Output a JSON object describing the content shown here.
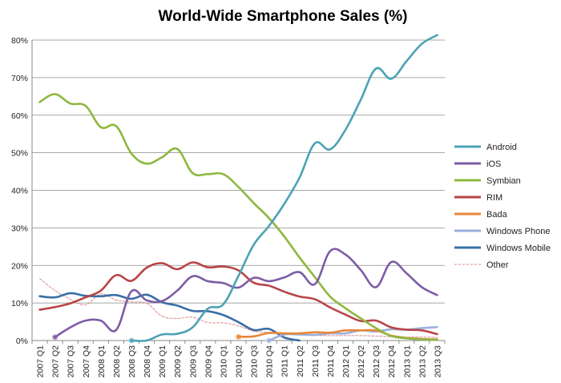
{
  "chart_data": {
    "type": "line",
    "title": "World-Wide Smartphone Sales (%)",
    "xlabel": "",
    "ylabel": "",
    "ylim": [
      0,
      80
    ],
    "yticks": [
      "0%",
      "10%",
      "20%",
      "30%",
      "40%",
      "50%",
      "60%",
      "70%",
      "80%"
    ],
    "grid": "horizontal",
    "legend_position": "right",
    "categories": [
      "2007 Q1",
      "2007 Q2",
      "2007 Q3",
      "2007 Q4",
      "2008 Q1",
      "2008 Q2",
      "2008 Q3",
      "2008 Q4",
      "2009 Q1",
      "2009 Q2",
      "2009 Q3",
      "2009 Q4",
      "2010 Q1",
      "2010 Q2",
      "2010 Q3",
      "2010 Q4",
      "2011 Q1",
      "2011 Q2",
      "2011 Q3",
      "2011 Q4",
      "2012 Q1",
      "2012 Q2",
      "2012 Q3",
      "2012 Q4",
      "2013 Q1",
      "2013 Q2",
      "2013 Q3"
    ],
    "series": [
      {
        "name": "Android",
        "color": "#4aa3b5",
        "style": "solid",
        "values": [
          null,
          null,
          null,
          null,
          null,
          null,
          0,
          0,
          1.6,
          1.8,
          3.5,
          8.5,
          9.6,
          17.2,
          25.5,
          30.5,
          36.4,
          43.4,
          52.5,
          50.9,
          56.1,
          64.1,
          72.4,
          69.7,
          74.4,
          79.0,
          81.3
        ]
      },
      {
        "name": "iOS",
        "color": "#7c5ca6",
        "style": "solid",
        "values": [
          null,
          0.9,
          3.5,
          5.3,
          5.3,
          2.8,
          13.1,
          10.7,
          10.5,
          13.3,
          17.1,
          15.8,
          15.3,
          14.1,
          16.7,
          15.8,
          16.8,
          18.2,
          15.0,
          23.8,
          22.9,
          18.8,
          14.2,
          20.9,
          17.9,
          14.2,
          12.1
        ]
      },
      {
        "name": "Symbian",
        "color": "#8db83f",
        "style": "solid",
        "values": [
          63.5,
          65.6,
          63.1,
          62.5,
          56.8,
          57.1,
          49.8,
          47.1,
          48.8,
          51.0,
          44.6,
          44.3,
          44.3,
          40.9,
          36.6,
          32.6,
          27.7,
          22.1,
          16.9,
          11.7,
          8.6,
          5.9,
          3.3,
          1.2,
          0.6,
          0.3,
          0.2
        ]
      },
      {
        "name": "RIM",
        "color": "#b74547",
        "style": "solid",
        "values": [
          8.2,
          8.9,
          9.9,
          11.5,
          13.3,
          17.4,
          15.9,
          19.4,
          20.6,
          19.0,
          20.8,
          19.5,
          19.7,
          18.7,
          15.4,
          14.6,
          13.0,
          11.7,
          11.0,
          8.8,
          6.9,
          5.2,
          5.3,
          3.5,
          2.9,
          2.7,
          1.7
        ]
      },
      {
        "name": "Bada",
        "color": "#e8883a",
        "style": "solid",
        "values": [
          null,
          null,
          null,
          null,
          null,
          null,
          null,
          null,
          null,
          null,
          null,
          null,
          null,
          1.0,
          1.1,
          2.0,
          1.9,
          1.9,
          2.2,
          2.1,
          2.7,
          2.7,
          2.7,
          1.3,
          0.7,
          0.4,
          0.3
        ]
      },
      {
        "name": "Windows Phone",
        "color": "#9ab0dc",
        "style": "solid",
        "values": [
          null,
          null,
          null,
          null,
          null,
          null,
          null,
          null,
          null,
          null,
          null,
          null,
          null,
          null,
          null,
          0,
          1.6,
          1.6,
          1.5,
          1.9,
          1.9,
          2.7,
          2.4,
          3.0,
          2.9,
          3.3,
          3.6
        ]
      },
      {
        "name": "Windows Mobile",
        "color": "#3a6ea5",
        "style": "solid",
        "values": [
          11.8,
          11.5,
          12.6,
          11.9,
          11.8,
          12.1,
          11.1,
          12.2,
          10.2,
          9.3,
          7.9,
          7.8,
          6.8,
          4.9,
          2.8,
          3.1,
          0.8,
          0,
          null,
          null,
          null,
          null,
          null,
          null,
          null,
          null,
          null
        ]
      },
      {
        "name": "Other",
        "color": "#d98a8a",
        "style": "dashed",
        "values": [
          16.5,
          13.3,
          11.0,
          9.5,
          12.4,
          10.8,
          10.3,
          9.9,
          6.5,
          5.9,
          6.2,
          4.8,
          4.7,
          3.9,
          2.5,
          2.2,
          2.0,
          1.6,
          1.4,
          1.3,
          1.3,
          1.3,
          1.2,
          1.0,
          0.9,
          0.9,
          0.8
        ]
      }
    ]
  }
}
